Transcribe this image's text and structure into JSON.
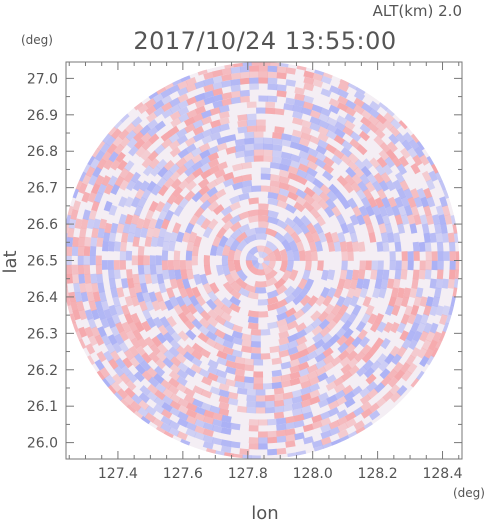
{
  "header": {
    "altitude_label": "ALT(km) 2.0",
    "timestamp": "2017/10/24 13:55:00",
    "y_unit": "(deg)",
    "x_unit": "(deg)"
  },
  "chart_data": {
    "type": "heatmap",
    "title": "2017/10/24 13:55:00",
    "subtitle": "ALT(km) 2.0",
    "xlabel": "lon",
    "ylabel": "lat",
    "x_unit": "(deg)",
    "y_unit": "(deg)",
    "xlim": [
      127.24,
      128.46
    ],
    "ylim": [
      25.955,
      27.045
    ],
    "x_ticks": [
      {
        "value": 127.4,
        "label": "127.4"
      },
      {
        "value": 127.6,
        "label": "127.6"
      },
      {
        "value": 127.8,
        "label": "127.8"
      },
      {
        "value": 128.0,
        "label": "128.0"
      },
      {
        "value": 128.2,
        "label": "128.2"
      },
      {
        "value": 128.4,
        "label": "128.4"
      }
    ],
    "y_ticks": [
      {
        "value": 26.0,
        "label": "26.0"
      },
      {
        "value": 26.1,
        "label": "26.1"
      },
      {
        "value": 26.2,
        "label": "26.2"
      },
      {
        "value": 26.3,
        "label": "26.3"
      },
      {
        "value": 26.4,
        "label": "26.4"
      },
      {
        "value": 26.5,
        "label": "26.5"
      },
      {
        "value": 26.6,
        "label": "26.6"
      },
      {
        "value": 26.7,
        "label": "26.7"
      },
      {
        "value": 26.8,
        "label": "26.8"
      },
      {
        "value": 26.9,
        "label": "26.9"
      },
      {
        "value": 27.0,
        "label": "27.0"
      }
    ],
    "radar_center": {
      "lon": 127.84,
      "lat": 26.5
    },
    "radar_range_deg_lat": 0.545,
    "colors": {
      "positive": "#f5a6aa",
      "negative": "#aab0f5",
      "neutral": "#ffffff",
      "axis": "#777777"
    }
  }
}
